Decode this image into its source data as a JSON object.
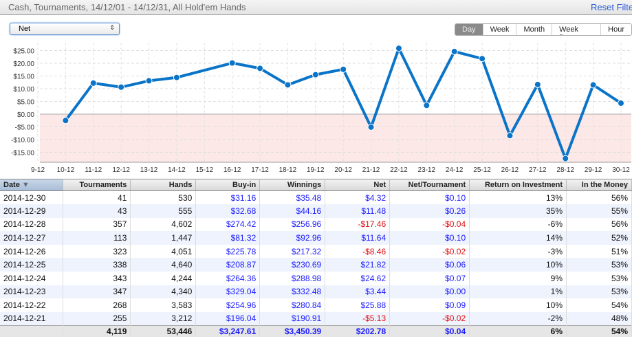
{
  "header": {
    "title": "Cash, Tournaments, 14/12/01 - 14/12/31, All Hold'em Hands",
    "reset": "Reset Filters"
  },
  "metric_select": {
    "value": "Net"
  },
  "period_tabs": [
    {
      "label": "Day",
      "active": true
    },
    {
      "label": "Week"
    },
    {
      "label": "Month"
    },
    {
      "label": "Week Day"
    },
    {
      "label": "Hour"
    }
  ],
  "chart_data": {
    "type": "line",
    "xlabel": "",
    "ylabel": "",
    "ylim": [
      -20,
      28
    ],
    "x_ticks": [
      "9-12",
      "10-12",
      "11-12",
      "12-12",
      "13-12",
      "14-12",
      "15-12",
      "16-12",
      "17-12",
      "18-12",
      "19-12",
      "20-12",
      "21-12",
      "22-12",
      "23-12",
      "24-12",
      "25-12",
      "26-12",
      "27-12",
      "28-12",
      "29-12",
      "30-12"
    ],
    "y_ticks": [
      {
        "v": 25,
        "l": "$25.00"
      },
      {
        "v": 20,
        "l": "$20.00"
      },
      {
        "v": 15,
        "l": "$15.00"
      },
      {
        "v": 10,
        "l": "$10.00"
      },
      {
        "v": 5,
        "l": "$5.00"
      },
      {
        "v": 0,
        "l": "$0.00"
      },
      {
        "v": -5,
        "l": "-$5.00"
      },
      {
        "v": -10,
        "l": "-$10.00"
      },
      {
        "v": -15,
        "l": "-$15.00"
      }
    ],
    "series": [
      {
        "name": "Net",
        "x": [
          "10-12",
          "11-12",
          "12-12",
          "13-12",
          "14-12",
          "16-12",
          "17-12",
          "18-12",
          "19-12",
          "20-12",
          "21-12",
          "22-12",
          "23-12",
          "24-12",
          "25-12",
          "26-12",
          "27-12",
          "28-12",
          "29-12",
          "30-12"
        ],
        "values": [
          -2.5,
          12.2,
          10.6,
          13.1,
          14.4,
          20.1,
          18.0,
          11.5,
          15.5,
          17.6,
          -5.13,
          25.88,
          3.44,
          24.62,
          21.82,
          -8.46,
          11.64,
          -17.46,
          11.48,
          4.32
        ]
      }
    ],
    "colors": {
      "line": "#0a74c8",
      "negative_bg": "#fde8e8"
    }
  },
  "table": {
    "columns": [
      "Date",
      "Tournaments",
      "Hands",
      "Buy-in",
      "Winnings",
      "Net",
      "Net/Tournament",
      "Return on Investment",
      "In the Money"
    ],
    "sort_indicator": "▼",
    "rows": [
      [
        "2014-12-30",
        "41",
        "530",
        "$31.16",
        "$35.48",
        "$4.32",
        "$0.10",
        "13%",
        "56%"
      ],
      [
        "2014-12-29",
        "43",
        "555",
        "$32.68",
        "$44.16",
        "$11.48",
        "$0.26",
        "35%",
        "55%"
      ],
      [
        "2014-12-28",
        "357",
        "4,602",
        "$274.42",
        "$256.96",
        "-$17.46",
        "-$0.04",
        "-6%",
        "56%"
      ],
      [
        "2014-12-27",
        "113",
        "1,447",
        "$81.32",
        "$92.96",
        "$11.64",
        "$0.10",
        "14%",
        "52%"
      ],
      [
        "2014-12-26",
        "323",
        "4,051",
        "$225.78",
        "$217.32",
        "-$8.46",
        "-$0.02",
        "-3%",
        "51%"
      ],
      [
        "2014-12-25",
        "338",
        "4,640",
        "$208.87",
        "$230.69",
        "$21.82",
        "$0.06",
        "10%",
        "53%"
      ],
      [
        "2014-12-24",
        "343",
        "4,244",
        "$264.36",
        "$288.98",
        "$24.62",
        "$0.07",
        "9%",
        "53%"
      ],
      [
        "2014-12-23",
        "347",
        "4,340",
        "$329.04",
        "$332.48",
        "$3.44",
        "$0.00",
        "1%",
        "53%"
      ],
      [
        "2014-12-22",
        "268",
        "3,583",
        "$254.96",
        "$280.84",
        "$25.88",
        "$0.09",
        "10%",
        "54%"
      ],
      [
        "2014-12-21",
        "255",
        "3,212",
        "$196.04",
        "$190.91",
        "-$5.13",
        "-$0.02",
        "-2%",
        "48%"
      ]
    ],
    "totals": [
      "",
      "4,119",
      "53,446",
      "$3,247.61",
      "$3,450.39",
      "$202.78",
      "$0.04",
      "6%",
      "54%"
    ]
  }
}
